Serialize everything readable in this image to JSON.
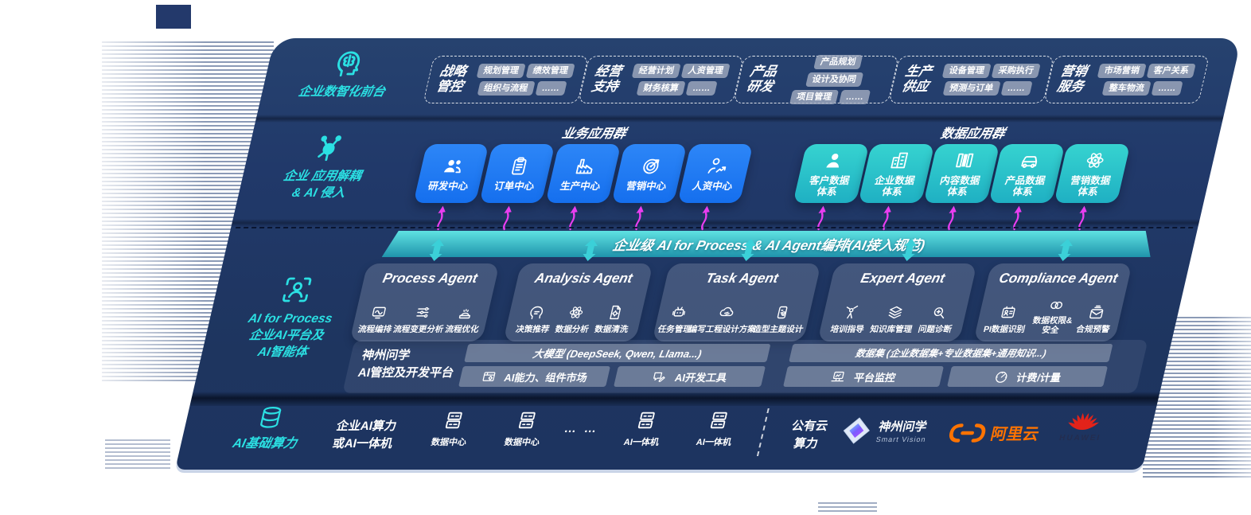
{
  "colors": {
    "panel": "#21396a",
    "blue_box": "#1e7af2",
    "teal_box": "#2cc6c8",
    "band_top": "#5fe2e2",
    "band_bottom": "#1f93ab",
    "magenta_arrow": "#e93ef0",
    "cyan_label": "#2be0e3",
    "alicloud_orange": "#ff7300",
    "huawei_red": "#e2231a"
  },
  "front_layer": {
    "label": "企业数智化前台",
    "icon": "head-brain-icon",
    "groups": [
      {
        "title": "战略管控",
        "chips": [
          "规划管理",
          "绩效管理",
          "组织与流程",
          "……"
        ]
      },
      {
        "title": "经营支持",
        "chips": [
          "经营计划",
          "人资管理",
          "财务核算",
          "……"
        ]
      },
      {
        "title": "产品研发",
        "chips": [
          "产品规划",
          "设计及协同",
          "项目管理",
          "……"
        ]
      },
      {
        "title": "生产供应",
        "chips": [
          "设备管理",
          "采购执行",
          "预测与订单",
          "……"
        ]
      },
      {
        "title": "营销服务",
        "chips": [
          "市场营销",
          "客户关系",
          "整车物流",
          "……"
        ]
      }
    ]
  },
  "app_layer": {
    "icon": "molecule-icon",
    "label_line1": "企业 应用解耦",
    "label_line2": "& AI 侵入",
    "business_group": {
      "title": "业务应用群",
      "items": [
        {
          "label": "研发中心",
          "icon": "team-icon"
        },
        {
          "label": "订单中心",
          "icon": "clipboard-icon"
        },
        {
          "label": "生产中心",
          "icon": "factory-icon"
        },
        {
          "label": "营销中心",
          "icon": "target-icon"
        },
        {
          "label": "人资中心",
          "icon": "person-chart-icon"
        }
      ]
    },
    "data_group": {
      "title": "数据应用群",
      "items": [
        {
          "label": "客户数据体系",
          "icon": "person-icon"
        },
        {
          "label": "企业数据体系",
          "icon": "building-icon"
        },
        {
          "label": "内容数据体系",
          "icon": "books-icon"
        },
        {
          "label": "产品数据体系",
          "icon": "car-icon"
        },
        {
          "label": "营销数据体系",
          "icon": "atom-icon"
        }
      ]
    }
  },
  "ai_layer": {
    "icon": "person-scan-icon",
    "label_line1": "AI for Process",
    "label_line2": "企业AI平台及",
    "label_line3": "AI智能体",
    "band_title": "企业级 AI for Process & AI Agent编排(AI接入规范)",
    "agents": [
      {
        "title": "Process Agent",
        "items": [
          {
            "label": "流程编排",
            "icon": "flow-icon"
          },
          {
            "label": "流程变更分析",
            "icon": "sliders-icon"
          },
          {
            "label": "流程优化",
            "icon": "optimize-icon"
          }
        ]
      },
      {
        "title": "Analysis Agent",
        "items": [
          {
            "label": "决策推荐",
            "icon": "decision-icon"
          },
          {
            "label": "数据分析",
            "icon": "atom-icon"
          },
          {
            "label": "数据清洗",
            "icon": "clean-icon"
          }
        ]
      },
      {
        "title": "Task Agent",
        "items": [
          {
            "label": "任务管理",
            "icon": "robot-icon"
          },
          {
            "label": "编写工程设计方案",
            "icon": "cloud-edit-icon"
          },
          {
            "label": "造型主题设计",
            "icon": "design-icon"
          }
        ]
      },
      {
        "title": "Expert Agent",
        "items": [
          {
            "label": "培训指导",
            "icon": "training-icon"
          },
          {
            "label": "知识库管理",
            "icon": "layers-icon"
          },
          {
            "label": "问题诊断",
            "icon": "diagnose-icon"
          }
        ]
      },
      {
        "title": "Compliance Agent",
        "items": [
          {
            "label": "PI数据识别",
            "icon": "id-card-icon"
          },
          {
            "label": "数据权限&安全",
            "icon": "rings-icon"
          },
          {
            "label": "合规预警",
            "icon": "alert-icon"
          }
        ]
      }
    ],
    "platform": {
      "label_line1": "神州问学",
      "label_line2": "AI管控及开发平台",
      "model_bar": "大模型 (DeepSeek, Qwen, Llama...)",
      "left_chips": [
        {
          "label": "AI能力、组件市场",
          "icon": "market-icon"
        },
        {
          "label": "AI开发工具",
          "icon": "devtools-icon"
        }
      ],
      "dataset_bar": "数据集 (企业数据集+专业数据集+通用知识...)",
      "right_chips": [
        {
          "label": "平台监控",
          "icon": "monitor-icon"
        },
        {
          "label": "计费/计量",
          "icon": "gauge-icon"
        }
      ]
    }
  },
  "infra_layer": {
    "label": "AI基础算力",
    "icon": "database-icon",
    "compute_label": [
      "企业AI算力",
      "或AI一体机"
    ],
    "items": [
      {
        "label": "数据中心",
        "icon": "server-icon"
      },
      {
        "label": "数据中心",
        "icon": "server-icon"
      },
      {
        "label": "… …"
      },
      {
        "label": "AI一体机",
        "icon": "server-icon"
      },
      {
        "label": "AI一体机",
        "icon": "server-icon"
      }
    ],
    "public_cloud": [
      "公有云",
      "算力"
    ],
    "vendors": [
      {
        "name": "神州问学",
        "sub": "Smart Vision",
        "icon": "szwx-logo"
      },
      {
        "name": "阿里云",
        "icon": "alicloud-logo"
      },
      {
        "name": "HUAWEI",
        "icon": "huawei-logo"
      }
    ]
  }
}
